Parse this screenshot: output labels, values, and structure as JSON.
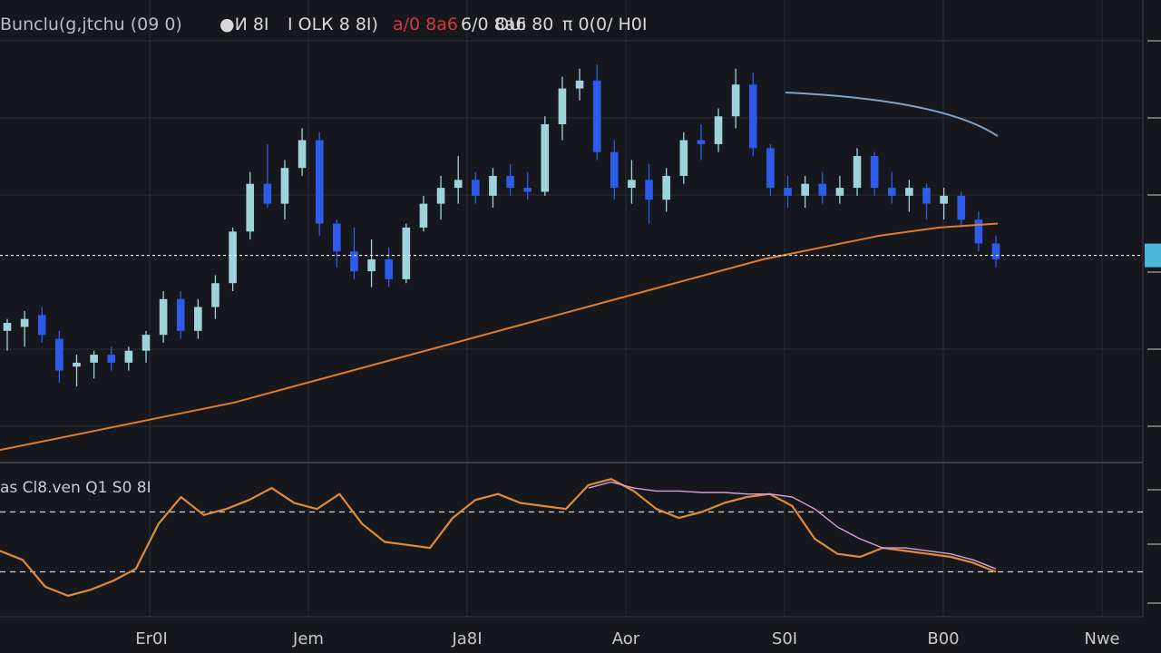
{
  "colors": {
    "background": "#16181d",
    "grid": "#2b2f36",
    "bull_candle": "#9fd3dc",
    "bear_candle": "#2f5bea",
    "moving_average": "#e07b2a",
    "price_line": "#ffffff",
    "price_tag": "#4bb7d9",
    "trend_line": "#7fa3c7",
    "oscillator": "#e08a3a",
    "oscillator_signal": "#d4a0d6",
    "axis_text": "#c8c8c8",
    "legend_accent_orange": "#e2532b",
    "legend_accent_red": "#d43a3a"
  },
  "header": {
    "symbol": "Bunclu(g,jtchu (09 0)",
    "o_value": "●И 8I",
    "h_value": "I OLК 8 8I)",
    "l_value": "a/0 8a6",
    "c_value": "6/0 8a6",
    "change_value": "OUı 80",
    "volume_value": "π 0(0/ H0I"
  },
  "oscillator_header": {
    "label": "as Cl8.ven Q1 S0 8I"
  },
  "chart_data": [
    {
      "type": "candlestick",
      "title": "",
      "x_labels": [
        "Er0I",
        "Jem",
        "Ja8I",
        "Aor",
        "S0I",
        "B00",
        "Nwe"
      ],
      "candles_bull_bear": "alternating cyan (up) and blue (down)",
      "candles": [
        {
          "open": 52,
          "high": 55,
          "low": 47,
          "close": 54,
          "up": true
        },
        {
          "open": 53,
          "high": 57,
          "low": 48,
          "close": 55,
          "up": true
        },
        {
          "open": 56,
          "high": 58,
          "low": 49,
          "close": 51,
          "up": false
        },
        {
          "open": 50,
          "high": 52,
          "low": 39,
          "close": 42,
          "up": false
        },
        {
          "open": 43,
          "high": 46,
          "low": 38,
          "close": 44,
          "up": true
        },
        {
          "open": 44,
          "high": 47,
          "low": 40,
          "close": 46,
          "up": true
        },
        {
          "open": 46,
          "high": 48,
          "low": 42,
          "close": 44,
          "up": false
        },
        {
          "open": 44,
          "high": 48,
          "low": 42,
          "close": 47,
          "up": true
        },
        {
          "open": 47,
          "high": 52,
          "low": 44,
          "close": 51,
          "up": true
        },
        {
          "open": 51,
          "high": 62,
          "low": 49,
          "close": 60,
          "up": true
        },
        {
          "open": 60,
          "high": 62,
          "low": 50,
          "close": 52,
          "up": false
        },
        {
          "open": 52,
          "high": 60,
          "low": 50,
          "close": 58,
          "up": true
        },
        {
          "open": 58,
          "high": 66,
          "low": 55,
          "close": 64,
          "up": true
        },
        {
          "open": 64,
          "high": 78,
          "low": 62,
          "close": 77,
          "up": true
        },
        {
          "open": 77,
          "high": 92,
          "low": 75,
          "close": 89,
          "up": true
        },
        {
          "open": 89,
          "high": 99,
          "low": 83,
          "close": 84,
          "up": false
        },
        {
          "open": 84,
          "high": 95,
          "low": 80,
          "close": 93,
          "up": true
        },
        {
          "open": 93,
          "high": 103,
          "low": 91,
          "close": 100,
          "up": true
        },
        {
          "open": 100,
          "high": 102,
          "low": 76,
          "close": 79,
          "up": false
        },
        {
          "open": 79,
          "high": 80,
          "low": 68,
          "close": 72,
          "up": false
        },
        {
          "open": 72,
          "high": 78,
          "low": 65,
          "close": 67,
          "up": false
        },
        {
          "open": 67,
          "high": 75,
          "low": 63,
          "close": 70,
          "up": true
        },
        {
          "open": 70,
          "high": 73,
          "low": 63,
          "close": 65,
          "up": false
        },
        {
          "open": 65,
          "high": 79,
          "low": 64,
          "close": 78,
          "up": true
        },
        {
          "open": 78,
          "high": 86,
          "low": 77,
          "close": 84,
          "up": true
        },
        {
          "open": 84,
          "high": 91,
          "low": 80,
          "close": 88,
          "up": true
        },
        {
          "open": 88,
          "high": 96,
          "low": 84,
          "close": 90,
          "up": true
        },
        {
          "open": 90,
          "high": 92,
          "low": 84,
          "close": 86,
          "up": false
        },
        {
          "open": 86,
          "high": 93,
          "low": 83,
          "close": 91,
          "up": true
        },
        {
          "open": 91,
          "high": 94,
          "low": 86,
          "close": 88,
          "up": false
        },
        {
          "open": 88,
          "high": 92,
          "low": 85,
          "close": 87,
          "up": false
        },
        {
          "open": 87,
          "high": 106,
          "low": 86,
          "close": 104,
          "up": true
        },
        {
          "open": 104,
          "high": 116,
          "low": 100,
          "close": 113,
          "up": true
        },
        {
          "open": 113,
          "high": 118,
          "low": 110,
          "close": 115,
          "up": true
        },
        {
          "open": 115,
          "high": 119,
          "low": 95,
          "close": 97,
          "up": false
        },
        {
          "open": 97,
          "high": 100,
          "low": 85,
          "close": 88,
          "up": false
        },
        {
          "open": 88,
          "high": 95,
          "low": 84,
          "close": 90,
          "up": true
        },
        {
          "open": 90,
          "high": 94,
          "low": 79,
          "close": 85,
          "up": false
        },
        {
          "open": 85,
          "high": 93,
          "low": 82,
          "close": 91,
          "up": true
        },
        {
          "open": 91,
          "high": 102,
          "low": 89,
          "close": 100,
          "up": true
        },
        {
          "open": 100,
          "high": 104,
          "low": 95,
          "close": 99,
          "up": false
        },
        {
          "open": 99,
          "high": 108,
          "low": 97,
          "close": 106,
          "up": true
        },
        {
          "open": 106,
          "high": 118,
          "low": 103,
          "close": 114,
          "up": true
        },
        {
          "open": 114,
          "high": 117,
          "low": 96,
          "close": 98,
          "up": false
        },
        {
          "open": 98,
          "high": 99,
          "low": 86,
          "close": 88,
          "up": false
        },
        {
          "open": 88,
          "high": 91,
          "low": 83,
          "close": 86,
          "up": false
        },
        {
          "open": 86,
          "high": 91,
          "low": 83,
          "close": 89,
          "up": true
        },
        {
          "open": 89,
          "high": 92,
          "low": 84,
          "close": 86,
          "up": false
        },
        {
          "open": 86,
          "high": 91,
          "low": 84,
          "close": 88,
          "up": true
        },
        {
          "open": 88,
          "high": 98,
          "low": 86,
          "close": 96,
          "up": true
        },
        {
          "open": 96,
          "high": 97,
          "low": 86,
          "close": 88,
          "up": false
        },
        {
          "open": 88,
          "high": 92,
          "low": 84,
          "close": 86,
          "up": false
        },
        {
          "open": 86,
          "high": 90,
          "low": 82,
          "close": 88,
          "up": true
        },
        {
          "open": 88,
          "high": 89,
          "low": 80,
          "close": 84,
          "up": false
        },
        {
          "open": 84,
          "high": 88,
          "low": 80,
          "close": 86,
          "up": true
        },
        {
          "open": 86,
          "high": 87,
          "low": 78,
          "close": 80,
          "up": false
        },
        {
          "open": 80,
          "high": 82,
          "low": 72,
          "close": 74,
          "up": false
        },
        {
          "open": 74,
          "high": 76,
          "low": 68,
          "close": 70,
          "up": false
        }
      ],
      "moving_average": [
        22,
        25,
        28,
        31,
        34,
        38,
        42,
        46,
        50,
        54,
        58,
        62,
        66,
        70,
        73,
        76,
        78,
        79
      ],
      "price_line_value": 71,
      "trend_line": {
        "from_value": 112,
        "to_value": 101
      },
      "ylim": [
        20,
        125
      ],
      "grid": true
    },
    {
      "type": "line",
      "title": "",
      "ylim": [
        0,
        100
      ],
      "levels": [
        70,
        30
      ],
      "series": [
        {
          "values": [
            44,
            38,
            20,
            14,
            18,
            24,
            32,
            62,
            80,
            68,
            72,
            78,
            86,
            76,
            72,
            82,
            62,
            50,
            48,
            46,
            66,
            78,
            82,
            76,
            74,
            72,
            88,
            92,
            84,
            72,
            66,
            70,
            76,
            80,
            82,
            74,
            52,
            42,
            40,
            46,
            44,
            42,
            40,
            36,
            30
          ]
        },
        {
          "values": [
            null,
            null,
            null,
            null,
            null,
            null,
            null,
            null,
            null,
            null,
            null,
            null,
            null,
            null,
            null,
            null,
            null,
            null,
            null,
            null,
            null,
            null,
            null,
            null,
            null,
            null,
            86,
            90,
            86,
            84,
            84,
            83,
            83,
            82,
            82,
            80,
            72,
            60,
            52,
            46,
            46,
            44,
            42,
            38,
            32
          ]
        }
      ],
      "right_axis_labels": [
        "",
        "",
        ""
      ]
    }
  ]
}
